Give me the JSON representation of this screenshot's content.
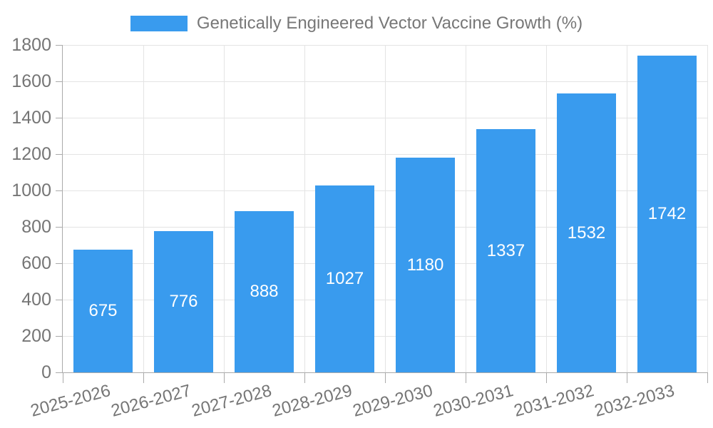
{
  "chart_data": {
    "type": "bar",
    "title": "Genetically Engineered Vector Vaccine Growth (%)",
    "legend": {
      "position": "top",
      "items": [
        "Genetically Engineered Vector Vaccine Growth (%)"
      ]
    },
    "categories": [
      "2025-2026",
      "2026-2027",
      "2027-2028",
      "2028-2029",
      "2029-2030",
      "2030-2031",
      "2031-2032",
      "2032-2033"
    ],
    "series": [
      {
        "name": "Genetically Engineered Vector Vaccine Growth (%)",
        "values": [
          675,
          776,
          888,
          1027,
          1180,
          1337,
          1532,
          1742
        ]
      }
    ],
    "value_labels_shown": true,
    "xlabel": "",
    "ylabel": "",
    "ylim": [
      0,
      1800
    ],
    "yticks": [
      0,
      200,
      400,
      600,
      800,
      1000,
      1200,
      1400,
      1600,
      1800
    ],
    "grid": true,
    "x_label_rotation_deg": -15,
    "colors": {
      "bar": "#399BEE",
      "value_label": "#FFFFFF",
      "gridline": "#E4E4E4",
      "axis_line": "#AAAAAA",
      "tick_text": "#757575",
      "legend_text": "#777777",
      "background": "#FFFFFF"
    }
  }
}
